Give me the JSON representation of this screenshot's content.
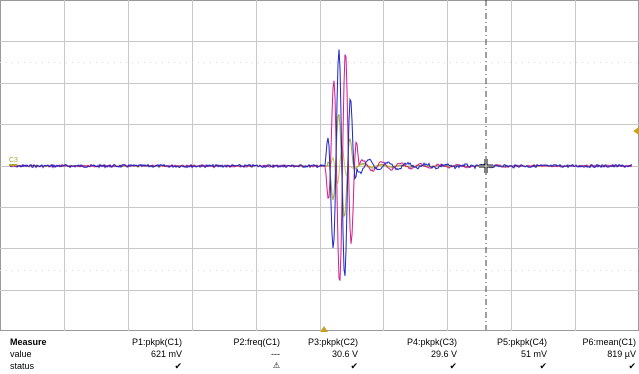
{
  "scope": {
    "channel_marker_label": "C3",
    "colors": {
      "background": "#ffffff",
      "grid": "#c8c8c8",
      "border": "#9a9a9a",
      "c1_blue": "#1c25c8",
      "c2_magenta": "#d21c8c",
      "c3_olive": "#a8a830",
      "c4_yellowgreen": "#c8c850",
      "trigger_arrow": "#c8a020",
      "cursor_line": "#404040"
    },
    "icons": {
      "trigger_time_marker": "triangle-up-icon",
      "trigger_level_marker": "triangle-left-icon",
      "cursor": "crosshair-cursor-icon"
    }
  },
  "measure": {
    "title": "Measure",
    "row_labels": [
      "value",
      "status"
    ],
    "columns": [
      {
        "name": "P1:pkpk(C1)",
        "value": "621 mV",
        "status": "✔"
      },
      {
        "name": "P2:freq(C1)",
        "value": "---",
        "status": "⚠"
      },
      {
        "name": "P3:pkpk(C2)",
        "value": "30.6 V",
        "status": "✔"
      },
      {
        "name": "P4:pkpk(C3)",
        "value": "29.6 V",
        "status": "✔"
      },
      {
        "name": "P5:pkpk(C4)",
        "value": "51 mV",
        "status": "✔"
      },
      {
        "name": "P6:mean(C1)",
        "value": "819 µV",
        "status": "✔"
      }
    ]
  }
}
